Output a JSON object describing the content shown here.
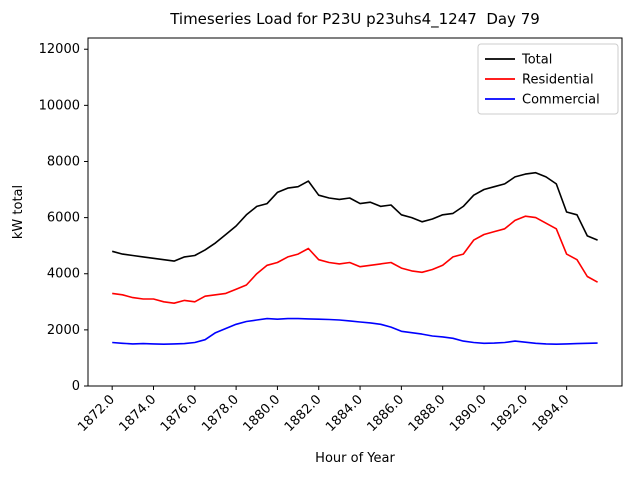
{
  "chart_data": {
    "type": "line",
    "title": "Timeseries Load for P23U p23uhs4_1247  Day 79",
    "xlabel": "Hour of Year",
    "ylabel": "kW total",
    "xlim": [
      1870.83,
      1896.68
    ],
    "ylim": [
      0,
      12400
    ],
    "grid": false,
    "legend_position": "upper right",
    "xticks": [
      1872,
      1874,
      1876,
      1878,
      1880,
      1882,
      1884,
      1886,
      1888,
      1890,
      1892,
      1894
    ],
    "xtick_labels": [
      "1872.0",
      "1874.0",
      "1876.0",
      "1878.0",
      "1880.0",
      "1882.0",
      "1884.0",
      "1886.0",
      "1888.0",
      "1890.0",
      "1892.0",
      "1894.0"
    ],
    "yticks": [
      0,
      2000,
      4000,
      6000,
      8000,
      10000,
      12000
    ],
    "ytick_labels": [
      "0",
      "2000",
      "4000",
      "6000",
      "8000",
      "10000",
      "12000"
    ],
    "x": [
      1872.0,
      1872.5,
      1873.0,
      1873.5,
      1874.0,
      1874.5,
      1875.0,
      1875.5,
      1876.0,
      1876.5,
      1877.0,
      1877.5,
      1878.0,
      1878.5,
      1879.0,
      1879.5,
      1880.0,
      1880.5,
      1881.0,
      1881.5,
      1882.0,
      1882.5,
      1883.0,
      1883.5,
      1884.0,
      1884.5,
      1885.0,
      1885.5,
      1886.0,
      1886.5,
      1887.0,
      1887.5,
      1888.0,
      1888.5,
      1889.0,
      1889.5,
      1890.0,
      1890.5,
      1891.0,
      1891.5,
      1892.0,
      1892.5,
      1893.0,
      1893.5,
      1894.0,
      1894.5,
      1895.0,
      1895.5
    ],
    "series": [
      {
        "name": "Total",
        "color": "#000000",
        "values": [
          4800,
          4700,
          4650,
          4600,
          4550,
          4500,
          4450,
          4600,
          4650,
          4850,
          5100,
          5400,
          5700,
          6100,
          6400,
          6500,
          6900,
          7050,
          7100,
          7300,
          6800,
          6700,
          6650,
          6700,
          6500,
          6550,
          6400,
          6450,
          6100,
          6000,
          5850,
          5950,
          6100,
          6150,
          6400,
          6800,
          7000,
          7100,
          7200,
          7450,
          7550,
          7600,
          7450,
          7200,
          6200,
          6100,
          5350,
          5200
        ]
      },
      {
        "name": "Residential",
        "color": "#ff0000",
        "values": [
          3300,
          3250,
          3150,
          3100,
          3100,
          3000,
          2950,
          3050,
          3000,
          3200,
          3250,
          3300,
          3450,
          3600,
          4000,
          4300,
          4400,
          4600,
          4700,
          4900,
          4500,
          4400,
          4350,
          4400,
          4250,
          4300,
          4350,
          4400,
          4200,
          4100,
          4050,
          4150,
          4300,
          4600,
          4700,
          5200,
          5400,
          5500,
          5600,
          5900,
          6050,
          6000,
          5800,
          5600,
          4700,
          4500,
          3900,
          3700
        ]
      },
      {
        "name": "Commercial",
        "color": "#0000ff",
        "values": [
          1550,
          1520,
          1500,
          1510,
          1500,
          1490,
          1500,
          1510,
          1550,
          1650,
          1900,
          2050,
          2200,
          2300,
          2350,
          2400,
          2380,
          2400,
          2400,
          2390,
          2380,
          2370,
          2350,
          2320,
          2280,
          2250,
          2200,
          2100,
          1950,
          1900,
          1850,
          1780,
          1750,
          1700,
          1600,
          1550,
          1520,
          1530,
          1550,
          1600,
          1560,
          1520,
          1500,
          1490,
          1500,
          1510,
          1520,
          1530
        ]
      }
    ]
  }
}
